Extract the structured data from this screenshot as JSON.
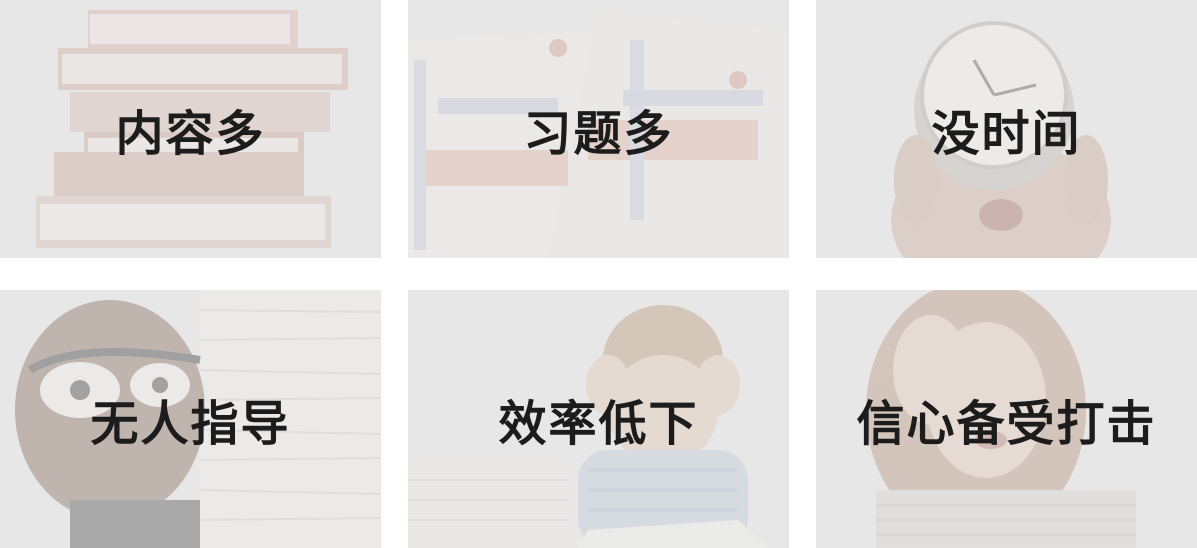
{
  "tiles": [
    {
      "label": "内容多",
      "icon": "stack-of-books-image"
    },
    {
      "label": "习题多",
      "icon": "exam-textbooks-image"
    },
    {
      "label": "没时间",
      "icon": "woman-with-clock-image"
    },
    {
      "label": "无人指导",
      "icon": "man-behind-paper-stack-image"
    },
    {
      "label": "效率低下",
      "icon": "boy-studying-image"
    },
    {
      "label": "信心备受打击",
      "icon": "frustrated-woman-image"
    }
  ],
  "colors": {
    "tile_background": "#e6e6e6",
    "label_text": "#1c1c1c"
  }
}
